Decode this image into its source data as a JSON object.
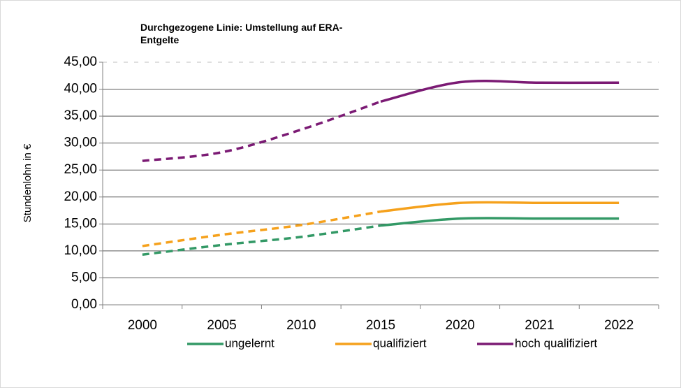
{
  "chart_data": {
    "type": "line",
    "title": "Durchgezogene Linie: Umstellung auf ERA-Entgelte",
    "y_label": "Stundenlohn in €",
    "categories": [
      "2000",
      "2005",
      "2010",
      "2015",
      "2020",
      "2021",
      "2022"
    ],
    "solid_from": "2015",
    "series": [
      {
        "name": "ungelernt",
        "color": "#339966",
        "values": [
          9.3,
          11.1,
          12.6,
          14.7,
          16.0,
          16.0,
          16.0
        ]
      },
      {
        "name": "qualifiziert",
        "color": "#f5a11c",
        "values": [
          10.9,
          13.0,
          14.8,
          17.3,
          18.9,
          18.9,
          18.9
        ]
      },
      {
        "name": "hoch qualifiziert",
        "color": "#7b1a74",
        "values": [
          26.7,
          28.3,
          32.5,
          37.7,
          41.3,
          41.2,
          41.2
        ]
      }
    ],
    "ylim": [
      0,
      45
    ],
    "yticks": [
      {
        "value": 0,
        "label": "0,00"
      },
      {
        "value": 5,
        "label": "5,00"
      },
      {
        "value": 10,
        "label": "10,00"
      },
      {
        "value": 15,
        "label": "15,00"
      },
      {
        "value": 20,
        "label": "20,00"
      },
      {
        "value": 25,
        "label": "25,00"
      },
      {
        "value": 30,
        "label": "30,00"
      },
      {
        "value": 35,
        "label": "35,00"
      },
      {
        "value": 40,
        "label": "40,00"
      },
      {
        "value": 45,
        "label": "45,00"
      }
    ],
    "grid": true,
    "legend": "bottom"
  }
}
